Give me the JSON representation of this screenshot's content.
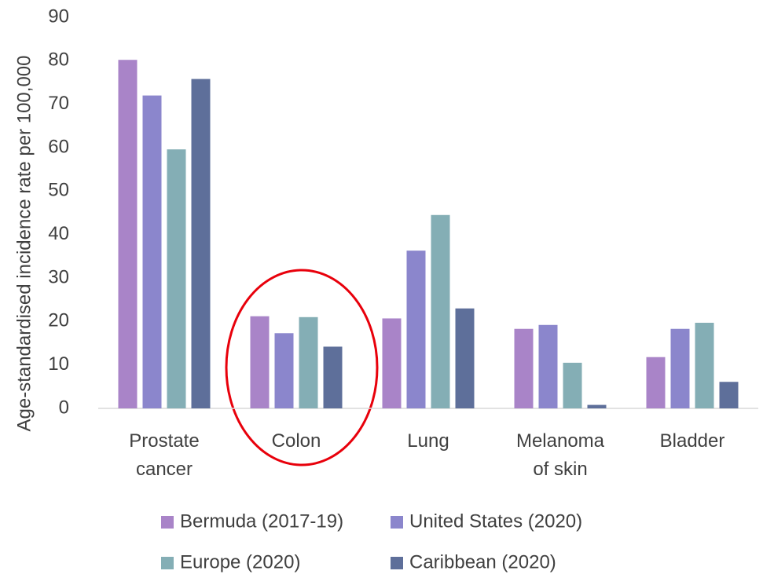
{
  "chart_data": {
    "type": "bar",
    "y_label": "Age-standardised incidence rate per 100,000",
    "categories": [
      "Prostate cancer",
      "Colon",
      "Lung",
      "Melanoma of skin",
      "Bladder"
    ],
    "series": [
      {
        "name": "Bermuda (2017-19)",
        "color": "#a984c8",
        "values": [
          80.2,
          21.2,
          20.7,
          18.3,
          11.8
        ]
      },
      {
        "name": "United States (2020)",
        "color": "#8b86cc",
        "values": [
          72,
          17.3,
          36.3,
          19.2,
          18.3
        ]
      },
      {
        "name": "Europe (2020)",
        "color": "#84aeb5",
        "values": [
          59.6,
          21,
          44.5,
          10.5,
          19.7
        ]
      },
      {
        "name": "Caribbean (2020)",
        "color": "#5e6f9a",
        "values": [
          75.8,
          14.2,
          23,
          0.8,
          6.1
        ]
      }
    ],
    "ylim": [
      0,
      90
    ],
    "yticks": [
      0,
      10,
      20,
      30,
      40,
      50,
      60,
      70,
      80,
      90
    ],
    "grid": false
  }
}
